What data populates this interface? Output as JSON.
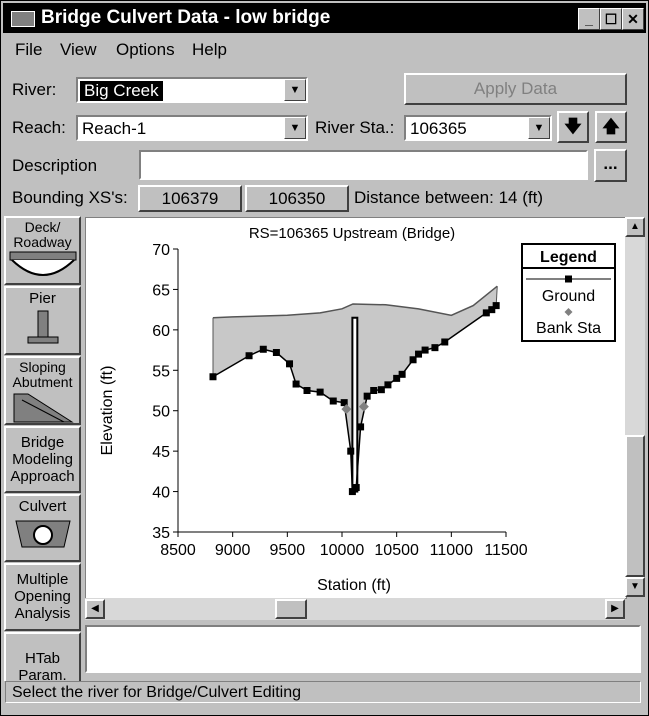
{
  "window": {
    "title": "Bridge Culvert Data - low bridge"
  },
  "menu": {
    "file": "File",
    "view": "View",
    "options": "Options",
    "help": "Help"
  },
  "form": {
    "river_label": "River:",
    "river_value": "Big Creek",
    "apply_button": "Apply Data",
    "reach_label": "Reach:",
    "reach_value": "Reach-1",
    "river_sta_label": "River Sta.:",
    "river_sta_value": "106365",
    "description_label": "Description",
    "description_value": "",
    "ellipsis_button": "...",
    "bounding_label": "Bounding XS's:",
    "bounding_upstream": "106379",
    "bounding_downstream": "106350",
    "distance_text": "Distance between: 14 (ft)"
  },
  "tools": [
    {
      "label": "Deck/ Roadway",
      "icon": "deck-icon"
    },
    {
      "label": "Pier",
      "icon": "pier-icon"
    },
    {
      "label": "Sloping Abutment",
      "icon": "abutment-icon"
    },
    {
      "label": "Bridge Modeling Approach",
      "icon": ""
    },
    {
      "label": "Culvert",
      "icon": "culvert-icon"
    },
    {
      "label": "Multiple Opening Analysis",
      "icon": ""
    },
    {
      "label": "HTab Param.",
      "icon": ""
    }
  ],
  "status_text": "Select the river for Bridge/Culvert Editing",
  "chart_data": {
    "type": "line",
    "title": "RS=106365  Upstream  (Bridge)",
    "xlabel": "Station (ft)",
    "ylabel": "Elevation (ft)",
    "xlim": [
      8500,
      11500
    ],
    "ylim": [
      35,
      70
    ],
    "xticks": [
      8500,
      9000,
      9500,
      10000,
      10500,
      11000,
      11500
    ],
    "yticks": [
      35,
      40,
      45,
      50,
      55,
      60,
      65,
      70
    ],
    "legend": {
      "title": "Legend",
      "entries": [
        "Ground",
        "Bank Sta"
      ],
      "position": "top-right"
    },
    "ground": {
      "x": [
        8820,
        9150,
        9280,
        9400,
        9520,
        9580,
        9680,
        9800,
        9920,
        10020,
        10080,
        10095,
        10130,
        10170,
        10230,
        10290,
        10360,
        10420,
        10500,
        10550,
        10650,
        10700,
        10760,
        10850,
        10940,
        11320,
        11370,
        11410
      ],
      "y": [
        54.2,
        56.8,
        57.6,
        57.2,
        55.8,
        53.3,
        52.5,
        52.3,
        51.2,
        51.0,
        45.0,
        40.0,
        40.5,
        48.0,
        51.8,
        52.5,
        52.6,
        53.2,
        54.0,
        54.5,
        56.3,
        57.0,
        57.5,
        57.8,
        58.5,
        62.1,
        62.5,
        63.0
      ]
    },
    "bank_stations": {
      "x": [
        10040,
        10200
      ],
      "y": [
        50.2,
        50.5
      ]
    },
    "deck": {
      "x": [
        8820,
        9000,
        9500,
        9800,
        10000,
        10100,
        10400,
        10700,
        11000,
        11200,
        11420
      ],
      "y": [
        61.5,
        61.6,
        61.8,
        62.1,
        62.6,
        63.2,
        63.1,
        62.6,
        61.8,
        63.0,
        65.4
      ]
    },
    "pier": {
      "x_left": 10095,
      "x_right": 10140,
      "top": 61.5,
      "bottom": 40.0
    }
  }
}
